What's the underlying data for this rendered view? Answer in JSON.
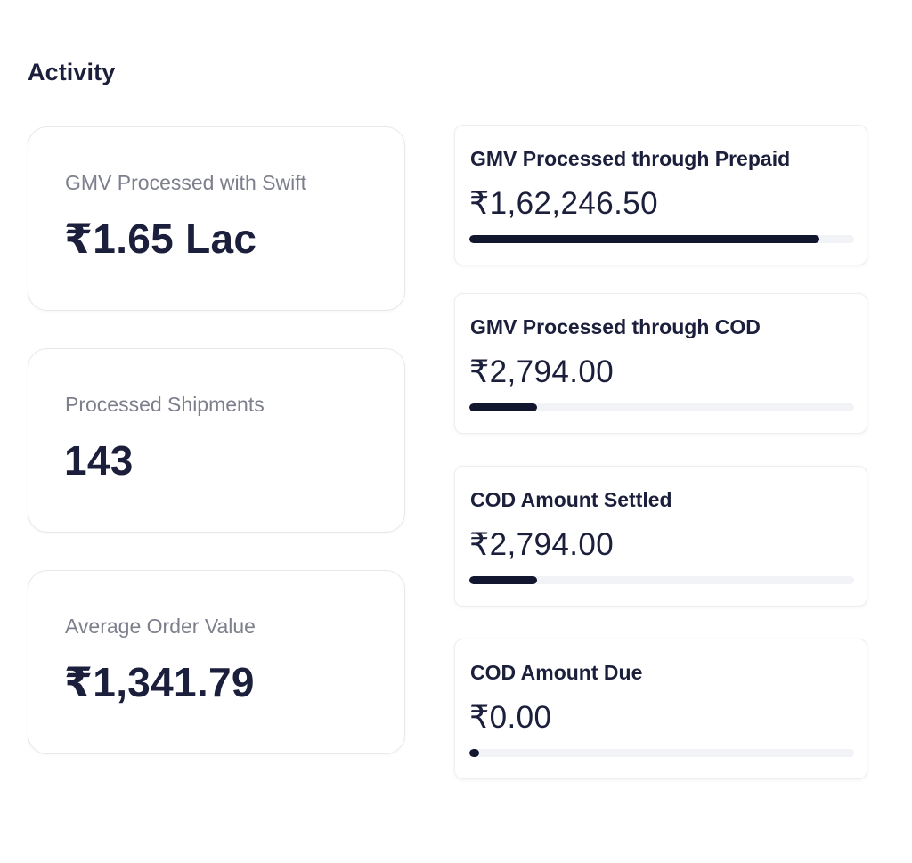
{
  "section": {
    "title": "Activity"
  },
  "summary_cards": [
    {
      "label": "GMV Processed with Swift",
      "value": "₹1.65 Lac"
    },
    {
      "label": "Processed Shipments",
      "value": "143"
    },
    {
      "label": "Average Order Value",
      "value": "₹1,341.79"
    }
  ],
  "metric_cards": [
    {
      "label": "GMV Processed through Prepaid",
      "value": "₹1,62,246.50",
      "progress_fraction": 0.91
    },
    {
      "label": "GMV Processed through COD",
      "value": "₹2,794.00",
      "progress_fraction": 0.175
    },
    {
      "label": "COD Amount Settled",
      "value": "₹2,794.00",
      "progress_fraction": 0.175
    },
    {
      "label": "COD Amount Due",
      "value": "₹0.00",
      "progress_fraction": 0.025
    }
  ],
  "colors": {
    "progress_fill": "#12162f",
    "progress_track": "#f2f3f7",
    "text_primary": "#1b1f3b",
    "text_muted": "#7d7f8c"
  }
}
